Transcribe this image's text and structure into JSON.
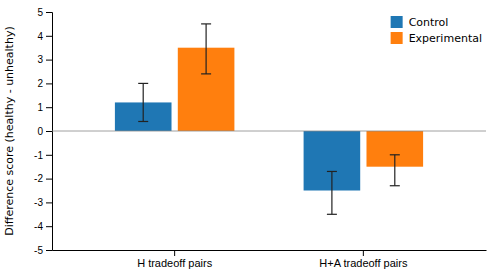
{
  "chart_data": {
    "type": "bar",
    "ylabel": "Difference score (healthy - unhealthy)",
    "categories": [
      "H tradeoff pairs",
      "H+A tradeoff pairs"
    ],
    "series": [
      {
        "name": "Control",
        "values": [
          1.2,
          -2.5
        ],
        "error_minus": [
          0.8,
          1.0
        ],
        "error_plus": [
          0.8,
          0.8
        ]
      },
      {
        "name": "Experimental",
        "values": [
          3.5,
          -1.5
        ],
        "error_minus": [
          1.1,
          0.8
        ],
        "error_plus": [
          1.0,
          0.5
        ]
      }
    ],
    "ylim": [
      -5,
      5
    ],
    "yticks": [
      -5,
      -4,
      -3,
      -2,
      -1,
      0,
      1,
      2,
      3,
      4,
      5
    ],
    "grid": false,
    "legend": "upper right"
  }
}
